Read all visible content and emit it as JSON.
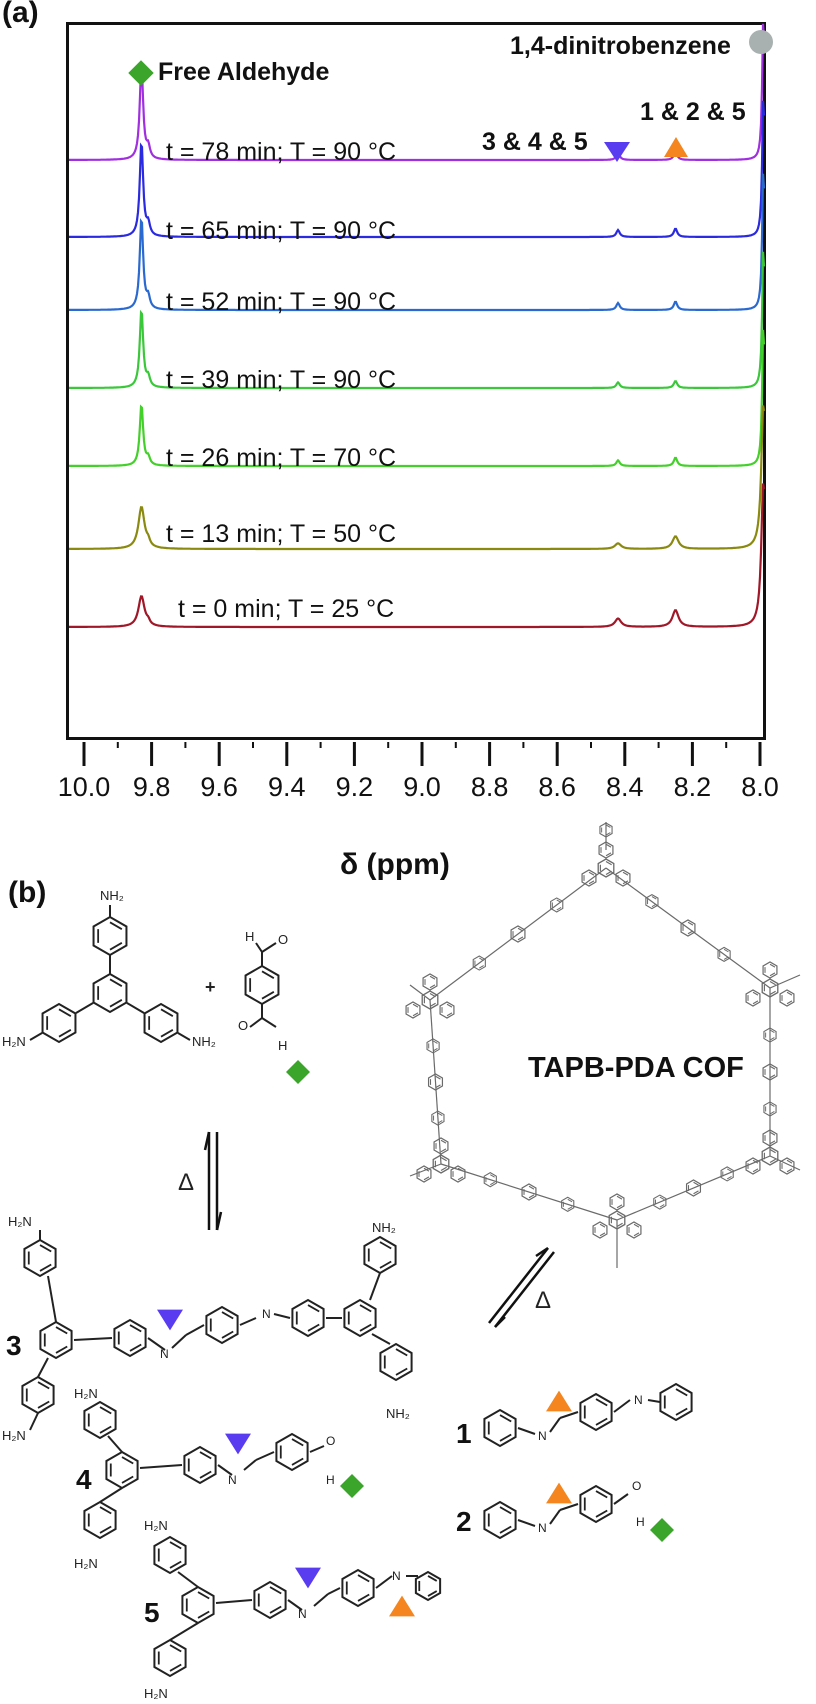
{
  "panel_a": {
    "label": "(a)",
    "annotations": {
      "free_aldehyde": "Free Aldehyde",
      "dinitrobenzene": "1,4-dinitrobenzene",
      "peak_345": "3 & 4 & 5",
      "peak_125": "1 & 2 & 5"
    },
    "xlabel": "δ (ppm)",
    "ticks": [
      "10.0",
      "9.8",
      "9.6",
      "9.4",
      "9.2",
      "9.0",
      "8.8",
      "8.6",
      "8.4",
      "8.2",
      "8.0"
    ]
  },
  "panel_b": {
    "label": "(b)",
    "cof_label": "TAPB-PDA COF",
    "delta": "Δ",
    "plus": "+",
    "compounds": [
      "1",
      "2",
      "3",
      "4",
      "5"
    ],
    "nh2": "NH₂",
    "h2n": "H₂N"
  },
  "colors": {
    "free_aldehyde_marker": "#3aa52a",
    "peak_345_marker": "#5a3cf0",
    "peak_125_marker": "#f5861f",
    "dinitrobenzene_marker": "#a8b0b0"
  },
  "chart_data": {
    "type": "line",
    "title": "",
    "xlabel": "δ (ppm)",
    "ylabel": "",
    "xlim": [
      10.05,
      7.95
    ],
    "x_ticks": [
      10.0,
      9.8,
      9.6,
      9.4,
      9.2,
      9.0,
      8.8,
      8.6,
      8.4,
      8.2,
      8.0
    ],
    "grid": false,
    "peaks_ppm": {
      "free_aldehyde": 9.83,
      "imine_3_4_5": 8.42,
      "imine_1_2_5": 8.25,
      "dinitrobenzene": 7.99
    },
    "series": [
      {
        "name": "t = 78 min; T = 90 °C",
        "color": "#a02fe0",
        "aldehyde_intensity": 0.68,
        "imine345_intensity": 0.05,
        "imine125_intensity": 0.06,
        "dnb_intensity": 1.0
      },
      {
        "name": "t = 65 min; T = 90 °C",
        "color": "#2a2ae0",
        "aldehyde_intensity": 0.68,
        "imine345_intensity": 0.05,
        "imine125_intensity": 0.06,
        "dnb_intensity": 1.0
      },
      {
        "name": "t = 52 min; T = 90 °C",
        "color": "#2a6ad0",
        "aldehyde_intensity": 0.66,
        "imine345_intensity": 0.05,
        "imine125_intensity": 0.06,
        "dnb_intensity": 1.0
      },
      {
        "name": "t = 39 min; T = 90 °C",
        "color": "#3ac83a",
        "aldehyde_intensity": 0.56,
        "imine345_intensity": 0.04,
        "imine125_intensity": 0.05,
        "dnb_intensity": 1.0
      },
      {
        "name": "t = 26 min; T = 70 °C",
        "color": "#44d02a",
        "aldehyde_intensity": 0.44,
        "imine345_intensity": 0.04,
        "imine125_intensity": 0.06,
        "dnb_intensity": 1.0
      },
      {
        "name": "t = 13 min; T = 50 °C",
        "color": "#8a8a10",
        "aldehyde_intensity": 0.3,
        "imine345_intensity": 0.04,
        "imine125_intensity": 0.09,
        "dnb_intensity": 1.0
      },
      {
        "name": "t = 0 min; T = 25 °C",
        "color": "#a01828",
        "aldehyde_intensity": 0.22,
        "imine345_intensity": 0.06,
        "imine125_intensity": 0.12,
        "dnb_intensity": 1.0
      }
    ]
  }
}
